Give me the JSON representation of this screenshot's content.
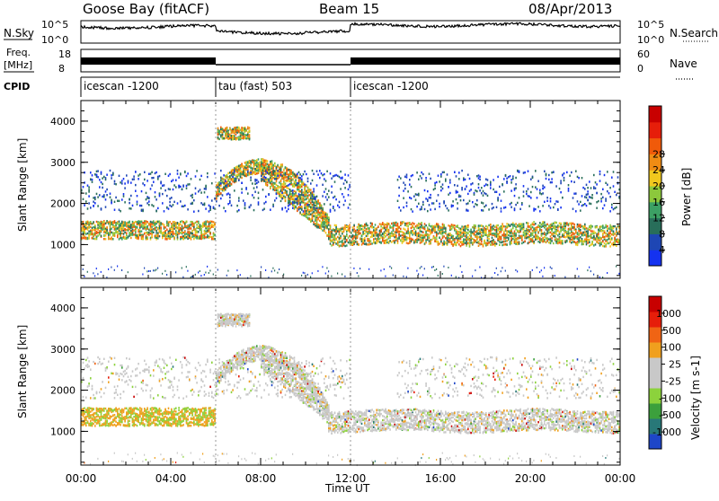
{
  "header": {
    "site": "Goose Bay (fitACF)",
    "beam": "Beam 15",
    "date": "08/Apr/2013"
  },
  "aux": {
    "nsky_label": "N.Sky",
    "nsearch_label": "N.Search",
    "nsearch_ticks": [
      "10^5",
      "10^0"
    ],
    "nsky_ticks": [
      "10^5",
      "10^0"
    ],
    "freq_label_1": "Freq.",
    "freq_label_2": "[MHz]",
    "freq_ticks": [
      "18",
      "8"
    ],
    "nave_label": "Nave",
    "nave_ticks": [
      "60",
      "0"
    ],
    "cpid_label": "CPID",
    "cpid_segments": [
      {
        "label": "icescan -1200",
        "start": 0,
        "end": 6
      },
      {
        "label": "tau (fast) 503",
        "start": 6,
        "end": 12
      },
      {
        "label": "icescan -1200",
        "start": 12,
        "end": 24
      }
    ]
  },
  "chart_data": [
    {
      "type": "heatmap",
      "name": "power-panel",
      "ylabel": "Slant Range [km]",
      "yticks": [
        "1000",
        "2000",
        "3000",
        "4000"
      ],
      "ylim": [
        180,
        4500
      ],
      "xlim": [
        0,
        24
      ],
      "colorbar": {
        "label": "Power [dB]",
        "ticks": [
          "4",
          "8",
          "12",
          "16",
          "20",
          "24",
          "28"
        ],
        "colors": [
          "#1432f0",
          "#1e46b4",
          "#286e5a",
          "#3ca064",
          "#8cc83c",
          "#f0c81e",
          "#f08c14",
          "#f05a0a",
          "#e61e0a",
          "#c80000"
        ]
      },
      "echo_bands": [
        {
          "label": "main",
          "t0": 0,
          "t1": 24,
          "center_km": 1400,
          "width_km": 500
        },
        {
          "label": "upper",
          "t0": 0,
          "t1": 24,
          "center_km": 2300,
          "width_km": 700
        },
        {
          "label": "arc",
          "t0": 6,
          "t1": 11,
          "peak_km": 2900
        }
      ]
    },
    {
      "type": "heatmap",
      "name": "velocity-panel",
      "ylabel": "Slant Range [km]",
      "yticks": [
        "1000",
        "2000",
        "3000",
        "4000"
      ],
      "ylim": [
        180,
        4500
      ],
      "xlim": [
        0,
        24
      ],
      "colorbar": {
        "label": "Velocity [m s-1]",
        "ticks": [
          "1000",
          "500",
          "100",
          "25",
          "-25",
          "-100",
          "-500",
          "-1000"
        ],
        "colors": [
          "#1e46c8",
          "#287878",
          "#3ca03c",
          "#8cd23c",
          "#c8c8c8",
          "#c8c8c8",
          "#f0a01e",
          "#f06414",
          "#e61e0a",
          "#c80000"
        ]
      }
    }
  ],
  "xaxis": {
    "label": "Time UT",
    "ticks": [
      "00:00",
      "04:00",
      "08:00",
      "12:00",
      "16:00",
      "20:00",
      "00:00"
    ]
  }
}
